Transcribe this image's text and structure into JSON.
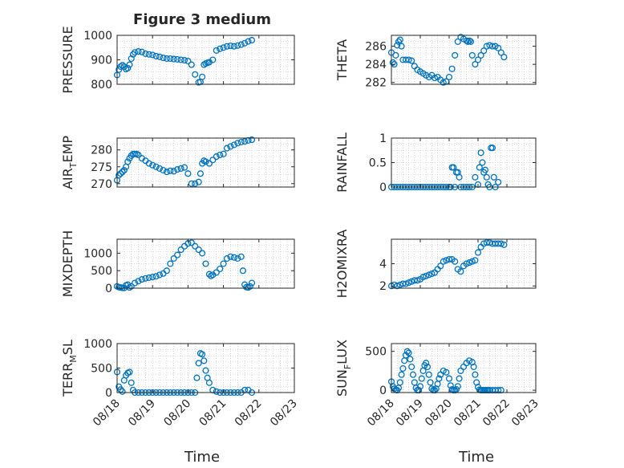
{
  "figure": {
    "title": "Figure 3 medium",
    "marker_color": "#0072BD",
    "x_ticks": [
      0,
      1,
      2,
      3,
      4,
      5
    ],
    "x_tick_labels": [
      "08/18",
      "08/19",
      "08/20",
      "08/21",
      "08/22",
      "08/23"
    ],
    "xlabel": "Time"
  },
  "chart_data": [
    {
      "type": "scatter",
      "id": "pressure",
      "ylabel": "PRESSURE",
      "ylim": [
        800,
        1000
      ],
      "yticks": [
        800,
        900,
        1000
      ],
      "ytick_labels": [
        "800",
        "900",
        "1000"
      ],
      "grid": true,
      "xlim": [
        0,
        5
      ],
      "x": [
        0.0,
        0.05,
        0.1,
        0.15,
        0.2,
        0.25,
        0.3,
        0.35,
        0.4,
        0.45,
        0.5,
        0.6,
        0.7,
        0.8,
        0.9,
        1.0,
        1.1,
        1.2,
        1.3,
        1.4,
        1.5,
        1.6,
        1.7,
        1.8,
        1.9,
        2.0,
        2.1,
        2.2,
        2.3,
        2.35,
        2.4,
        2.45,
        2.5,
        2.55,
        2.6,
        2.7,
        2.8,
        2.9,
        3.0,
        3.1,
        3.2,
        3.3,
        3.4,
        3.5,
        3.6,
        3.7,
        3.8
      ],
      "y": [
        838,
        860,
        872,
        878,
        872,
        862,
        866,
        880,
        905,
        922,
        930,
        934,
        932,
        925,
        922,
        920,
        915,
        912,
        908,
        905,
        905,
        903,
        902,
        900,
        898,
        895,
        880,
        840,
        808,
        810,
        830,
        880,
        885,
        888,
        890,
        900,
        938,
        945,
        950,
        955,
        957,
        955,
        958,
        962,
        968,
        975,
        980
      ]
    },
    {
      "type": "scatter",
      "id": "theta",
      "ylabel": "THETA",
      "ylim": [
        281.8,
        287.2
      ],
      "yticks": [
        282,
        284,
        286
      ],
      "ytick_labels": [
        "282",
        "284",
        "286"
      ],
      "grid": true,
      "xlim": [
        0,
        5
      ],
      "x": [
        0.0,
        0.05,
        0.1,
        0.15,
        0.2,
        0.25,
        0.3,
        0.35,
        0.4,
        0.5,
        0.6,
        0.7,
        0.8,
        0.9,
        1.0,
        1.1,
        1.2,
        1.3,
        1.4,
        1.5,
        1.6,
        1.7,
        1.8,
        1.9,
        2.0,
        2.1,
        2.2,
        2.3,
        2.4,
        2.5,
        2.6,
        2.65,
        2.7,
        2.75,
        2.8,
        2.9,
        3.0,
        3.1,
        3.2,
        3.3,
        3.4,
        3.5,
        3.6,
        3.7,
        3.8,
        3.9
      ],
      "y": [
        285.3,
        284.2,
        284.0,
        285.0,
        286.1,
        286.5,
        286.7,
        286.0,
        284.5,
        284.5,
        284.5,
        284.4,
        283.8,
        283.4,
        283.2,
        283.0,
        282.8,
        282.6,
        282.8,
        282.5,
        282.6,
        282.3,
        282.0,
        282.1,
        282.6,
        283.5,
        285.0,
        286.5,
        287.0,
        286.8,
        286.6,
        286.5,
        286.6,
        286.5,
        285.0,
        284.0,
        284.5,
        285.0,
        285.5,
        286.0,
        286.1,
        286.0,
        286.0,
        285.8,
        285.3,
        284.8
      ]
    },
    {
      "type": "scatter",
      "id": "air_temp",
      "ylabel": "AIR",
      "ylabel_sub": "T",
      "ylabel_rest": "EMP",
      "ylim": [
        269,
        283.5
      ],
      "yticks": [
        270,
        275,
        280
      ],
      "ytick_labels": [
        "270",
        "275",
        "280"
      ],
      "grid": true,
      "xlim": [
        0,
        5
      ],
      "x": [
        0.0,
        0.05,
        0.1,
        0.15,
        0.2,
        0.25,
        0.3,
        0.35,
        0.4,
        0.45,
        0.5,
        0.55,
        0.6,
        0.7,
        0.8,
        0.9,
        1.0,
        1.1,
        1.2,
        1.3,
        1.4,
        1.5,
        1.6,
        1.7,
        1.8,
        1.9,
        2.0,
        2.1,
        2.2,
        2.3,
        2.35,
        2.4,
        2.45,
        2.5,
        2.6,
        2.7,
        2.8,
        2.9,
        3.0,
        3.1,
        3.2,
        3.3,
        3.4,
        3.5,
        3.6,
        3.7,
        3.8
      ],
      "y": [
        271,
        272.5,
        273,
        273.5,
        274,
        275,
        276.5,
        277.5,
        278.3,
        278.8,
        278.8,
        278.8,
        278.5,
        277.5,
        276.8,
        276.0,
        275.5,
        275.0,
        274.5,
        274.0,
        273.5,
        273.8,
        273.7,
        274.2,
        274.5,
        274.8,
        273.0,
        270.0,
        270.0,
        270.5,
        273.0,
        276.0,
        276.8,
        276.5,
        276.0,
        277.0,
        278.0,
        278.5,
        278.8,
        280.5,
        281.0,
        281.5,
        282.0,
        282.3,
        282.5,
        282.8,
        283.0
      ]
    },
    {
      "type": "scatter",
      "id": "rainfall",
      "ylabel": "RAINFALL",
      "ylim": [
        0,
        1
      ],
      "yticks": [
        0,
        0.5,
        1
      ],
      "ytick_labels": [
        "0",
        "0.5",
        "1"
      ],
      "grid": true,
      "xlim": [
        0,
        5
      ],
      "x": [
        0.0,
        0.1,
        0.2,
        0.3,
        0.4,
        0.5,
        0.6,
        0.7,
        0.8,
        0.9,
        1.0,
        1.1,
        1.2,
        1.3,
        1.4,
        1.5,
        1.6,
        1.7,
        1.8,
        1.9,
        2.0,
        2.05,
        2.1,
        2.15,
        2.2,
        2.25,
        2.3,
        2.35,
        2.4,
        2.5,
        2.6,
        2.7,
        2.8,
        2.9,
        3.0,
        3.05,
        3.1,
        3.15,
        3.2,
        3.25,
        3.3,
        3.35,
        3.4,
        3.45,
        3.5,
        3.55,
        3.6,
        3.7
      ],
      "y": [
        0,
        0,
        0,
        0,
        0,
        0,
        0,
        0,
        0,
        0,
        0,
        0,
        0,
        0,
        0,
        0,
        0,
        0,
        0,
        0,
        0,
        0,
        0.4,
        0.4,
        0,
        0.3,
        0.3,
        0.2,
        0,
        0,
        0,
        0,
        0,
        0.2,
        0.05,
        0.4,
        0.7,
        0.5,
        0.3,
        0.35,
        0.2,
        0.05,
        0,
        0.8,
        0.8,
        0.2,
        0,
        0.1
      ]
    },
    {
      "type": "scatter",
      "id": "mixdepth",
      "ylabel": "MIXDEPTH",
      "ylim": [
        0,
        1400
      ],
      "yticks": [
        0,
        500,
        1000
      ],
      "ytick_labels": [
        "0",
        "500",
        "1000"
      ],
      "grid": true,
      "xlim": [
        0,
        5
      ],
      "x": [
        0.0,
        0.05,
        0.1,
        0.15,
        0.2,
        0.25,
        0.3,
        0.35,
        0.4,
        0.5,
        0.6,
        0.7,
        0.8,
        0.9,
        1.0,
        1.1,
        1.2,
        1.3,
        1.4,
        1.5,
        1.6,
        1.7,
        1.8,
        1.9,
        2.0,
        2.1,
        2.2,
        2.3,
        2.4,
        2.5,
        2.6,
        2.65,
        2.7,
        2.8,
        2.9,
        3.0,
        3.1,
        3.2,
        3.3,
        3.4,
        3.5,
        3.55,
        3.6,
        3.65,
        3.7,
        3.75,
        3.8
      ],
      "y": [
        50,
        30,
        20,
        10,
        5,
        80,
        100,
        20,
        50,
        150,
        200,
        250,
        280,
        300,
        320,
        340,
        380,
        420,
        500,
        700,
        850,
        950,
        1100,
        1200,
        1280,
        1300,
        1200,
        1100,
        1000,
        700,
        400,
        350,
        380,
        450,
        550,
        700,
        850,
        900,
        880,
        850,
        900,
        500,
        100,
        30,
        20,
        50,
        150
      ]
    },
    {
      "type": "scatter",
      "id": "h2omixra",
      "ylabel": "H2OMIXRA",
      "ylim": [
        1.8,
        6.2
      ],
      "yticks": [
        2,
        4
      ],
      "ytick_labels": [
        "2",
        "4"
      ],
      "grid": true,
      "xlim": [
        0,
        5
      ],
      "x": [
        0.0,
        0.1,
        0.2,
        0.3,
        0.4,
        0.5,
        0.6,
        0.7,
        0.8,
        0.9,
        1.0,
        1.1,
        1.2,
        1.3,
        1.4,
        1.5,
        1.6,
        1.7,
        1.8,
        1.9,
        2.0,
        2.1,
        2.2,
        2.3,
        2.4,
        2.5,
        2.6,
        2.7,
        2.8,
        2.9,
        3.0,
        3.1,
        3.2,
        3.3,
        3.4,
        3.5,
        3.6,
        3.7,
        3.8,
        3.9
      ],
      "y": [
        2.0,
        2.1,
        2.0,
        2.1,
        2.2,
        2.2,
        2.3,
        2.4,
        2.5,
        2.5,
        2.6,
        2.8,
        2.9,
        3.0,
        3.1,
        3.2,
        3.5,
        3.8,
        4.2,
        4.3,
        4.4,
        4.4,
        4.2,
        3.5,
        3.3,
        3.8,
        4.0,
        4.1,
        4.2,
        4.3,
        5.0,
        5.5,
        5.8,
        5.9,
        5.9,
        5.8,
        5.8,
        5.8,
        5.8,
        5.7
      ]
    },
    {
      "type": "scatter",
      "id": "terr_msl",
      "ylabel": "TERR",
      "ylabel_sub": "M",
      "ylabel_rest": "SL",
      "ylim": [
        0,
        1000
      ],
      "yticks": [
        0,
        500,
        1000
      ],
      "ytick_labels": [
        "0",
        "500",
        "1000"
      ],
      "grid": true,
      "xlim": [
        0,
        5
      ],
      "x": [
        0.0,
        0.05,
        0.1,
        0.15,
        0.2,
        0.25,
        0.3,
        0.35,
        0.4,
        0.45,
        0.5,
        0.6,
        0.7,
        0.8,
        0.9,
        1.0,
        1.1,
        1.2,
        1.3,
        1.4,
        1.5,
        1.6,
        1.7,
        1.8,
        1.9,
        2.0,
        2.1,
        2.2,
        2.25,
        2.3,
        2.35,
        2.4,
        2.45,
        2.5,
        2.55,
        2.6,
        2.7,
        2.8,
        2.9,
        3.0,
        3.1,
        3.2,
        3.3,
        3.4,
        3.5,
        3.6,
        3.7,
        3.8
      ],
      "y": [
        420,
        120,
        60,
        20,
        250,
        350,
        400,
        420,
        200,
        50,
        0,
        0,
        0,
        0,
        0,
        0,
        0,
        0,
        0,
        0,
        0,
        0,
        0,
        0,
        0,
        0,
        0,
        0,
        300,
        600,
        800,
        780,
        650,
        450,
        300,
        200,
        50,
        20,
        0,
        0,
        0,
        0,
        0,
        0,
        0,
        50,
        50,
        0
      ]
    },
    {
      "type": "scatter",
      "id": "sunflux",
      "ylabel": "SUN",
      "ylabel_sub": "F",
      "ylabel_rest": "LUX",
      "ylim": [
        -30,
        600
      ],
      "yticks": [
        0,
        500
      ],
      "ytick_labels": [
        "0",
        "500"
      ],
      "grid": true,
      "xlim": [
        0,
        5
      ],
      "x": [
        0.0,
        0.05,
        0.1,
        0.15,
        0.2,
        0.25,
        0.3,
        0.35,
        0.4,
        0.45,
        0.5,
        0.55,
        0.6,
        0.65,
        0.7,
        0.75,
        0.8,
        0.85,
        0.9,
        0.95,
        1.0,
        1.05,
        1.1,
        1.15,
        1.2,
        1.25,
        1.3,
        1.35,
        1.4,
        1.45,
        1.5,
        1.55,
        1.6,
        1.65,
        1.7,
        1.8,
        1.9,
        2.0,
        2.05,
        2.1,
        2.15,
        2.2,
        2.25,
        2.3,
        2.35,
        2.4,
        2.5,
        2.6,
        2.7,
        2.8,
        2.85,
        2.9,
        2.95,
        3.0,
        3.05,
        3.1,
        3.15,
        3.2,
        3.25,
        3.3,
        3.35,
        3.4,
        3.5,
        3.6,
        3.7,
        3.8
      ],
      "y": [
        110,
        50,
        20,
        5,
        0,
        30,
        100,
        200,
        280,
        380,
        450,
        500,
        480,
        400,
        300,
        200,
        100,
        30,
        0,
        0,
        50,
        150,
        250,
        320,
        350,
        300,
        200,
        100,
        20,
        0,
        0,
        20,
        80,
        150,
        200,
        250,
        230,
        150,
        60,
        10,
        0,
        0,
        10,
        50,
        150,
        250,
        300,
        350,
        380,
        360,
        300,
        200,
        100,
        40,
        5,
        0,
        0,
        0,
        0,
        0,
        0,
        0,
        0,
        0,
        0,
        0
      ]
    }
  ]
}
